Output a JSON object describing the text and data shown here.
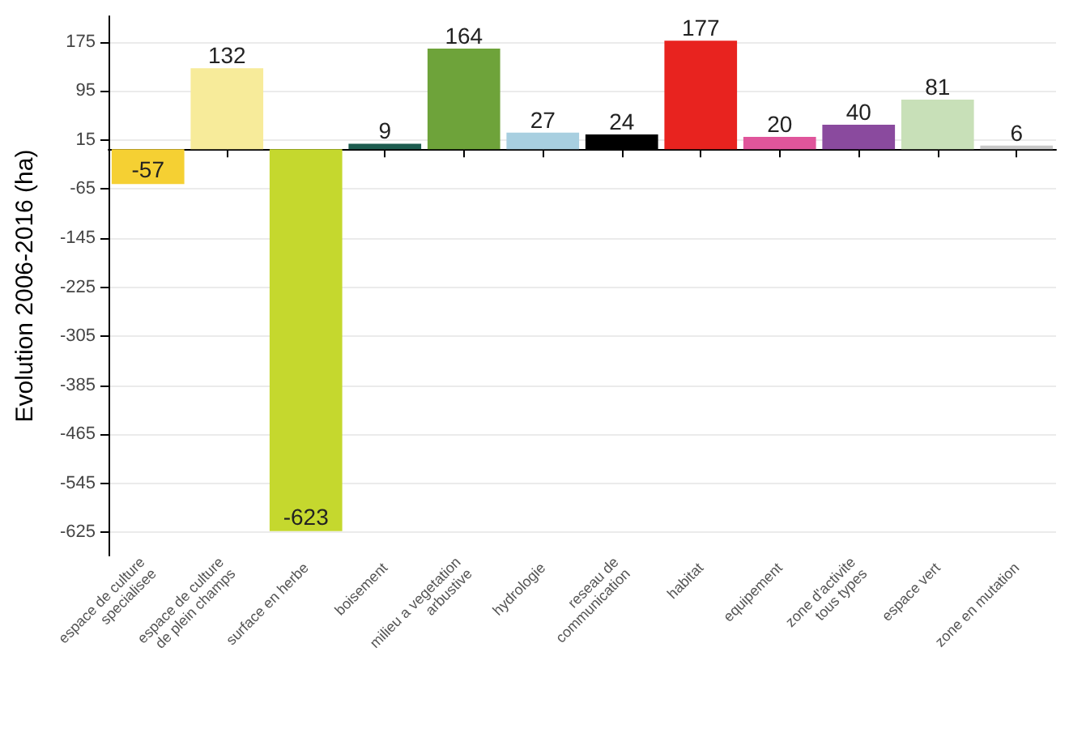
{
  "chart_data": {
    "type": "bar",
    "ylabel": "Evolution 2006-2016 (ha)",
    "categories": [
      "espace de culture\nspecialisee",
      "espace de culture\nde plein champs",
      "surface en herbe",
      "boisement",
      "milieu a vegetation\narbustive",
      "hydrologie",
      "reseau de\ncommunication",
      "habitat",
      "equipement",
      "zone d'activite\ntous types",
      "espace vert",
      "zone en mutation"
    ],
    "values": [
      -57,
      132,
      -623,
      9,
      164,
      27,
      24,
      177,
      20,
      40,
      81,
      6
    ],
    "colors": [
      "#f5d033",
      "#f7eb9a",
      "#c5d82e",
      "#1d5c4f",
      "#6ea33a",
      "#a8cfe0",
      "#000000",
      "#e8231f",
      "#e0559b",
      "#8a4a9e",
      "#c8e0b8",
      "#c8c8c8"
    ],
    "ylim": [
      -663,
      217
    ],
    "yticks": [
      175,
      95,
      15,
      -65,
      -145,
      -225,
      -305,
      -385,
      -465,
      -545,
      -625
    ],
    "grid": "y",
    "data_labels": true
  }
}
